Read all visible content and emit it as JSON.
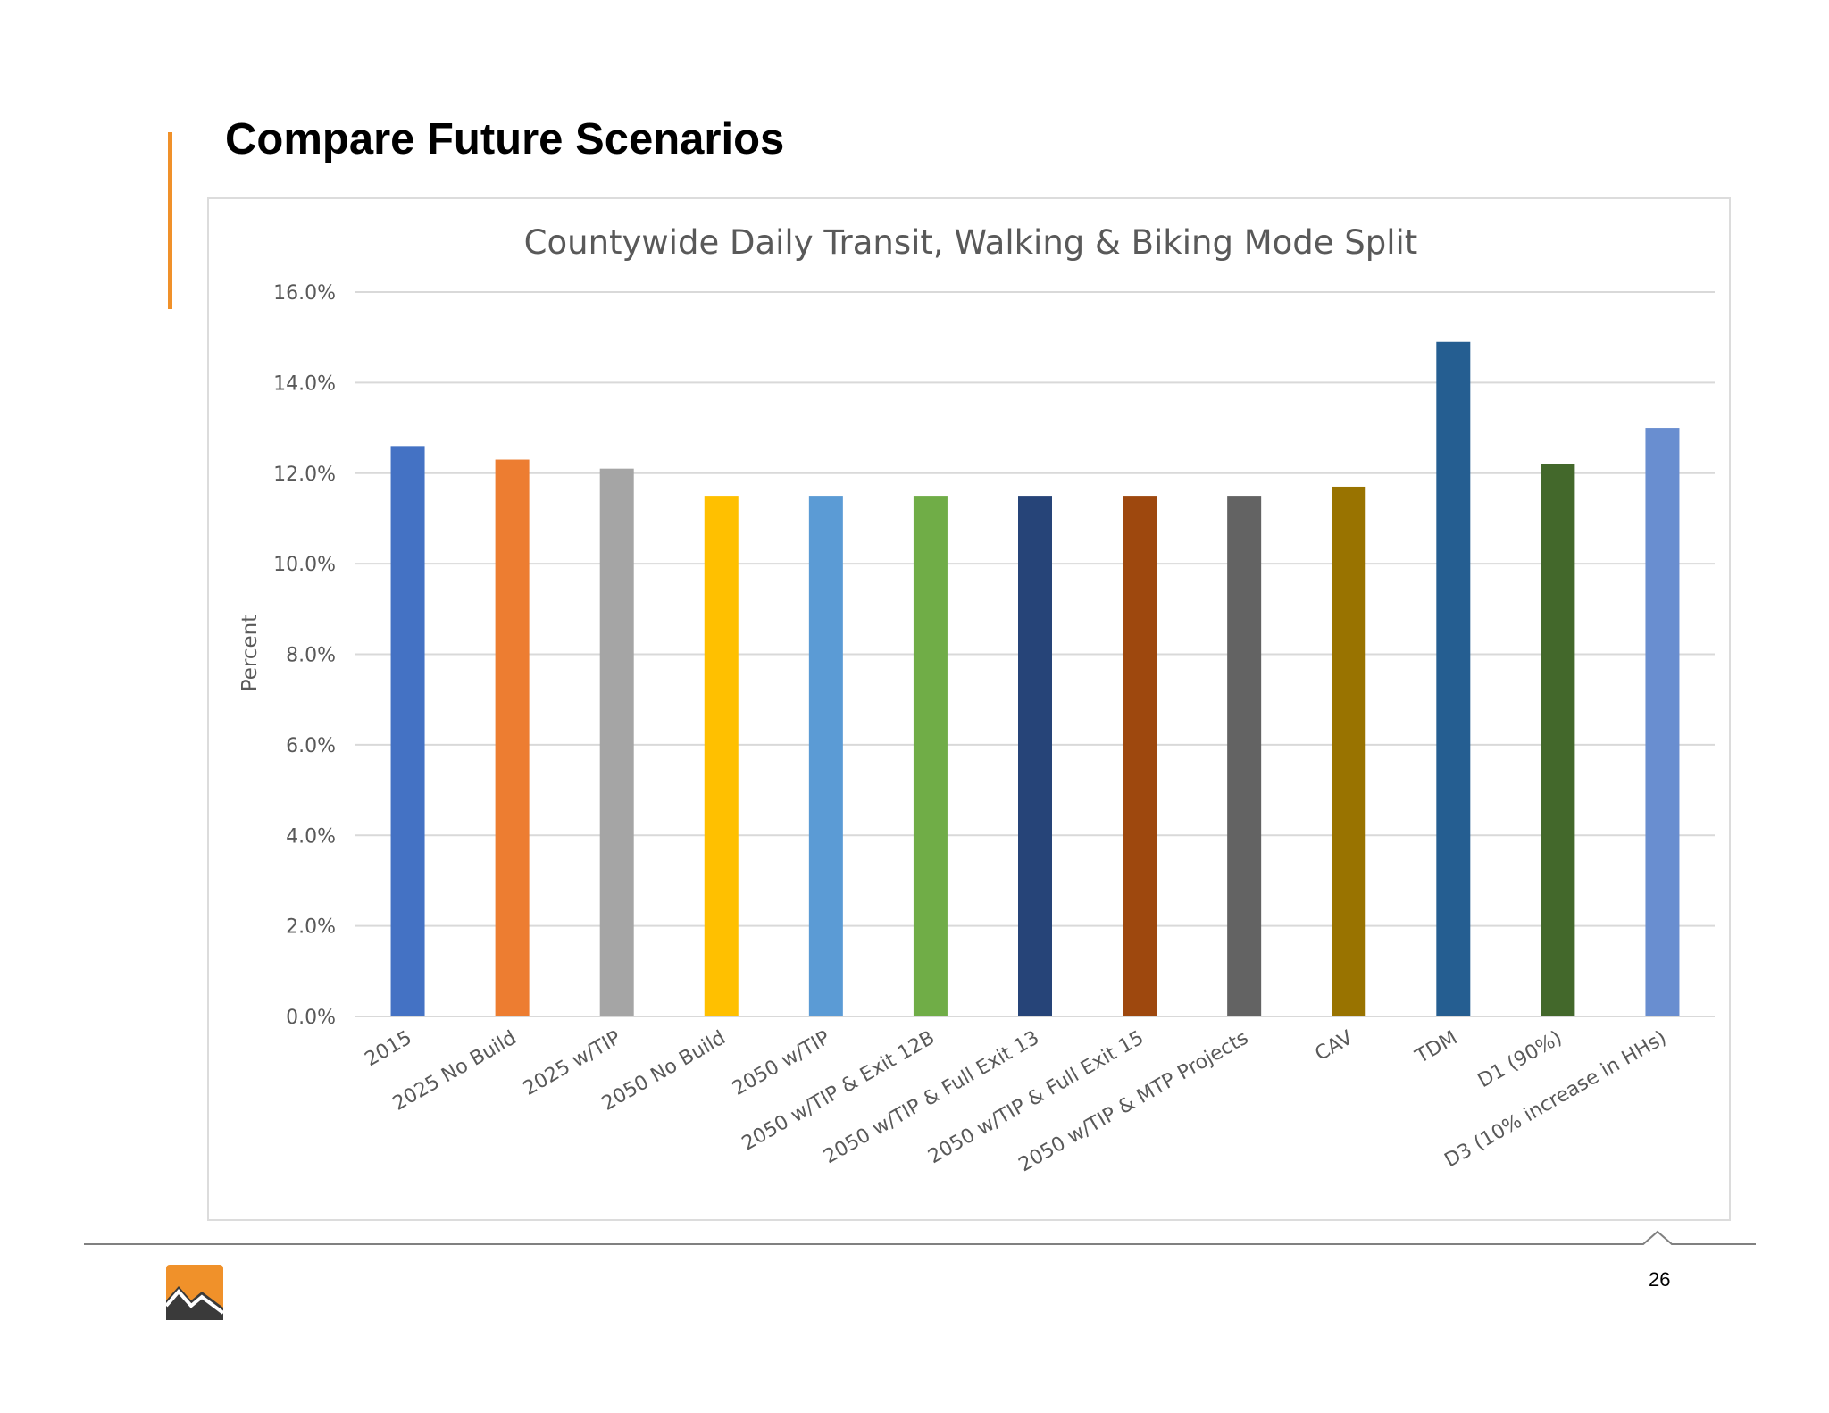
{
  "slide": {
    "title": "Compare Future Scenarios",
    "page_number": "26",
    "accent_color": "#f0912a"
  },
  "chart_data": {
    "type": "bar",
    "title": "Countywide Daily Transit, Walking & Biking Mode Split",
    "xlabel": "",
    "ylabel": "Percent",
    "ylim": [
      0,
      16
    ],
    "yticks": [
      "0.0%",
      "2.0%",
      "4.0%",
      "6.0%",
      "8.0%",
      "10.0%",
      "12.0%",
      "14.0%",
      "16.0%"
    ],
    "grid": true,
    "legend": "none",
    "categories": [
      "2015",
      "2025 No Build",
      "2025 w/TIP",
      "2050 No Build",
      "2050 w/TIP",
      "2050 w/TIP & Exit 12B",
      "2050 w/TIP & Full Exit 13",
      "2050 w/TIP & Full Exit 15",
      "2050 w/TIP & MTP Projects",
      "CAV",
      "TDM",
      "D1 (90%)",
      "D3 (10% increase in HHs)"
    ],
    "values": [
      12.6,
      12.3,
      12.1,
      11.5,
      11.5,
      11.5,
      11.5,
      11.5,
      11.5,
      11.7,
      14.9,
      12.2,
      13.0
    ],
    "colors": [
      "#4472c4",
      "#ed7d31",
      "#a5a5a5",
      "#ffc000",
      "#5b9bd5",
      "#70ad47",
      "#264478",
      "#9e480e",
      "#636363",
      "#997300",
      "#255e91",
      "#43682b",
      "#698ed0"
    ]
  }
}
